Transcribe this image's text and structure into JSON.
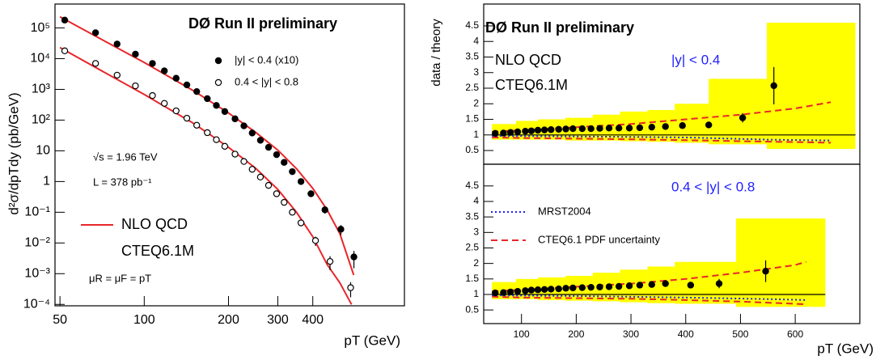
{
  "chart_data": [
    {
      "type": "scatter",
      "title": "DØ Run II preliminary",
      "x_label": "pT (GeV)",
      "y_label": "d²σ/dpTdy (pb/GeV)",
      "xlog": true,
      "ylog": true,
      "xlim": [
        48,
        850
      ],
      "ylim": [
        9e-05,
        600000
      ],
      "xticks": [
        50,
        100,
        200,
        300,
        400
      ],
      "yticks": [
        {
          "value": 0.0001,
          "label": "10⁻⁴"
        },
        {
          "value": 0.001,
          "label": "10⁻³"
        },
        {
          "value": 0.01,
          "label": "10⁻²"
        },
        {
          "value": 0.1,
          "label": "10⁻¹"
        },
        1,
        10,
        {
          "value": 100,
          "label": "10²"
        },
        {
          "value": 1000,
          "label": "10³"
        },
        {
          "value": 10000,
          "label": "10⁴"
        },
        {
          "value": 100000,
          "label": "10⁵"
        }
      ],
      "series": [
        {
          "name": "|y| < 0.4 (x10)",
          "color": "#000000",
          "marker": "filled",
          "x": [
            52,
            67,
            80,
            93,
            107,
            118,
            130,
            142,
            154,
            168,
            181,
            194,
            211,
            227,
            243,
            260,
            278,
            297,
            316,
            338,
            363,
            394,
            442,
            504,
            561
          ],
          "values": [
            180000,
            70000,
            30000,
            14000,
            7000,
            4000,
            2300,
            1400,
            850,
            500,
            300,
            190,
            110,
            65,
            38,
            22,
            13,
            7.5,
            4.2,
            2.1,
            1.0,
            0.4,
            0.12,
            0.028,
            0.0035
          ],
          "errors": [
            40000,
            12000,
            5000,
            2200,
            1100,
            600,
            350,
            200,
            120,
            70,
            42,
            27,
            16,
            9,
            5.5,
            3.2,
            1.9,
            1.1,
            0.6,
            0.35,
            0.17,
            0.08,
            0.03,
            0.01,
            0.002
          ]
        },
        {
          "name": "0.4 < |y| < 0.8",
          "color": "#000000",
          "marker": "open",
          "x": [
            52,
            67,
            80,
            93,
            107,
            118,
            130,
            142,
            154,
            168,
            181,
            194,
            211,
            227,
            243,
            260,
            278,
            297,
            316,
            338,
            363,
            409,
            461,
            546
          ],
          "values": [
            18000,
            7000,
            2900,
            1300,
            630,
            350,
            200,
            115,
            68,
            39,
            23,
            14,
            7.8,
            4.5,
            2.5,
            1.4,
            0.75,
            0.4,
            0.21,
            0.1,
            0.045,
            0.012,
            0.0025,
            0.00035
          ],
          "errors": [
            4000,
            1200,
            450,
            200,
            95,
            52,
            30,
            17,
            10,
            6,
            3.5,
            2.1,
            1.2,
            0.7,
            0.4,
            0.22,
            0.12,
            0.07,
            0.04,
            0.02,
            0.01,
            0.004,
            0.0012,
            0.00018
          ]
        }
      ],
      "curves": [
        {
          "color": "#e8262a",
          "x": [
            50,
            100,
            150,
            200,
            250,
            300,
            350,
            400,
            450,
            500,
            560
          ],
          "values": [
            230000,
            7500,
            900,
            170,
            40,
            10.5,
            2.6,
            0.6,
            0.12,
            0.02,
            0.0009
          ]
        },
        {
          "color": "#e8262a",
          "x": [
            50,
            100,
            150,
            200,
            250,
            300,
            350,
            400,
            450,
            500,
            550
          ],
          "values": [
            23000,
            680,
            78,
            13,
            2.7,
            0.55,
            0.1,
            0.016,
            0.002,
            0.0005,
            0.0001
          ]
        }
      ],
      "fit_legend": {
        "color": "#e8262a",
        "labels": [
          "NLO QCD",
          "CTEQ6.1M"
        ]
      },
      "annotations": [
        "√s = 1.96 TeV",
        "L = 378 pb⁻¹",
        "μR = μF = pT"
      ]
    },
    {
      "type": "ratio",
      "title": "DØ Run II preliminary",
      "y_label": "data / theory",
      "xlim": [
        31,
        718
      ],
      "ylim": [
        0.06,
        5.2
      ],
      "yticks": [
        0.5,
        1,
        1.5,
        2,
        2.5,
        3,
        3.5,
        4,
        4.5
      ],
      "reference_line": 1,
      "annotations": [
        "NLO QCD",
        "CTEQ6.1M"
      ],
      "rapidity_label": {
        "text": "|y| < 0.4",
        "color": "#1f1fff"
      },
      "band": {
        "color": "#ffff00",
        "bins": [
          46,
          90,
          130,
          180,
          230,
          280,
          330,
          380,
          442,
          548,
          710
        ],
        "high": [
          1.35,
          1.45,
          1.5,
          1.55,
          1.65,
          1.75,
          1.8,
          2.0,
          2.8,
          4.6
        ],
        "low": [
          0.85,
          0.85,
          0.85,
          0.82,
          0.82,
          0.8,
          0.78,
          0.75,
          0.7,
          0.55
        ]
      },
      "data": {
        "color": "#000000",
        "x": [
          52,
          67,
          80,
          93,
          107,
          118,
          130,
          142,
          154,
          168,
          181,
          194,
          211,
          227,
          243,
          260,
          278,
          297,
          316,
          338,
          363,
          394,
          442,
          504,
          561
        ],
        "values": [
          1.05,
          1.06,
          1.08,
          1.1,
          1.12,
          1.13,
          1.15,
          1.16,
          1.17,
          1.18,
          1.19,
          1.2,
          1.2,
          1.2,
          1.21,
          1.22,
          1.22,
          1.22,
          1.23,
          1.25,
          1.27,
          1.3,
          1.32,
          1.55,
          2.58
        ],
        "errors": [
          0.02,
          0.02,
          0.02,
          0.02,
          0.02,
          0.02,
          0.02,
          0.02,
          0.02,
          0.02,
          0.02,
          0.02,
          0.02,
          0.02,
          0.02,
          0.03,
          0.03,
          0.03,
          0.03,
          0.04,
          0.04,
          0.06,
          0.08,
          0.15,
          0.6
        ]
      },
      "series": [
        {
          "color": "#1f1fff",
          "style": "dotted",
          "x": [
            46,
            200,
            400,
            550,
            665
          ],
          "values": [
            0.97,
            0.95,
            0.92,
            0.85,
            0.82
          ]
        },
        {
          "color": "#e8262a",
          "style": "dashed",
          "x": [
            46,
            100,
            200,
            300,
            400,
            500,
            600,
            665
          ],
          "values": [
            1.1,
            1.15,
            1.25,
            1.35,
            1.5,
            1.65,
            1.85,
            2.05
          ]
        },
        {
          "color": "#e8262a",
          "style": "dashed",
          "x": [
            46,
            100,
            200,
            300,
            400,
            500,
            600,
            665
          ],
          "values": [
            0.92,
            0.9,
            0.88,
            0.86,
            0.83,
            0.8,
            0.77,
            0.75
          ]
        }
      ]
    },
    {
      "type": "ratio",
      "x_label": "pT (GeV)",
      "xlim": [
        31,
        718
      ],
      "ylim": [
        0.06,
        5.2
      ],
      "xticks": [
        100,
        200,
        300,
        400,
        500,
        600
      ],
      "yticks": [
        0.5,
        1,
        1.5,
        2,
        2.5,
        3,
        3.5,
        4,
        4.5
      ],
      "reference_line": 1,
      "rapidity_label": {
        "text": "0.4 < |y| < 0.8",
        "color": "#1f1fff"
      },
      "band": {
        "color": "#ffff00",
        "bins": [
          46,
          90,
          130,
          180,
          230,
          280,
          330,
          380,
          492,
          655
        ],
        "high": [
          1.4,
          1.5,
          1.55,
          1.6,
          1.7,
          1.8,
          1.9,
          2.05,
          3.45
        ],
        "low": [
          0.85,
          0.85,
          0.82,
          0.8,
          0.78,
          0.75,
          0.72,
          0.7,
          0.6
        ]
      },
      "data": {
        "color": "#000000",
        "x": [
          52,
          67,
          80,
          93,
          107,
          118,
          130,
          142,
          154,
          168,
          181,
          194,
          211,
          227,
          243,
          260,
          278,
          297,
          316,
          338,
          363,
          409,
          461,
          546
        ],
        "values": [
          1.05,
          1.06,
          1.08,
          1.1,
          1.12,
          1.14,
          1.15,
          1.16,
          1.17,
          1.18,
          1.2,
          1.21,
          1.22,
          1.23,
          1.24,
          1.25,
          1.26,
          1.28,
          1.3,
          1.32,
          1.35,
          1.3,
          1.35,
          1.75
        ],
        "errors": [
          0.02,
          0.02,
          0.02,
          0.02,
          0.02,
          0.02,
          0.02,
          0.02,
          0.02,
          0.02,
          0.02,
          0.02,
          0.02,
          0.03,
          0.03,
          0.03,
          0.03,
          0.03,
          0.04,
          0.04,
          0.05,
          0.07,
          0.15,
          0.35
        ]
      },
      "series": [
        {
          "name": "MRST2004",
          "color": "#1f1fff",
          "style": "dotted",
          "x": [
            46,
            200,
            400,
            550,
            620
          ],
          "values": [
            0.97,
            0.95,
            0.9,
            0.85,
            0.82
          ]
        },
        {
          "name": "CTEQ6.1 PDF uncertainty",
          "color": "#e8262a",
          "style": "dashed",
          "x": [
            46,
            100,
            200,
            300,
            400,
            500,
            600,
            620
          ],
          "values": [
            1.1,
            1.15,
            1.25,
            1.35,
            1.5,
            1.7,
            1.95,
            2.05
          ]
        },
        {
          "color": "#e8262a",
          "style": "dashed",
          "x": [
            46,
            100,
            200,
            300,
            400,
            500,
            600,
            620
          ],
          "values": [
            0.93,
            0.9,
            0.88,
            0.86,
            0.82,
            0.77,
            0.7,
            0.68
          ]
        }
      ]
    }
  ]
}
